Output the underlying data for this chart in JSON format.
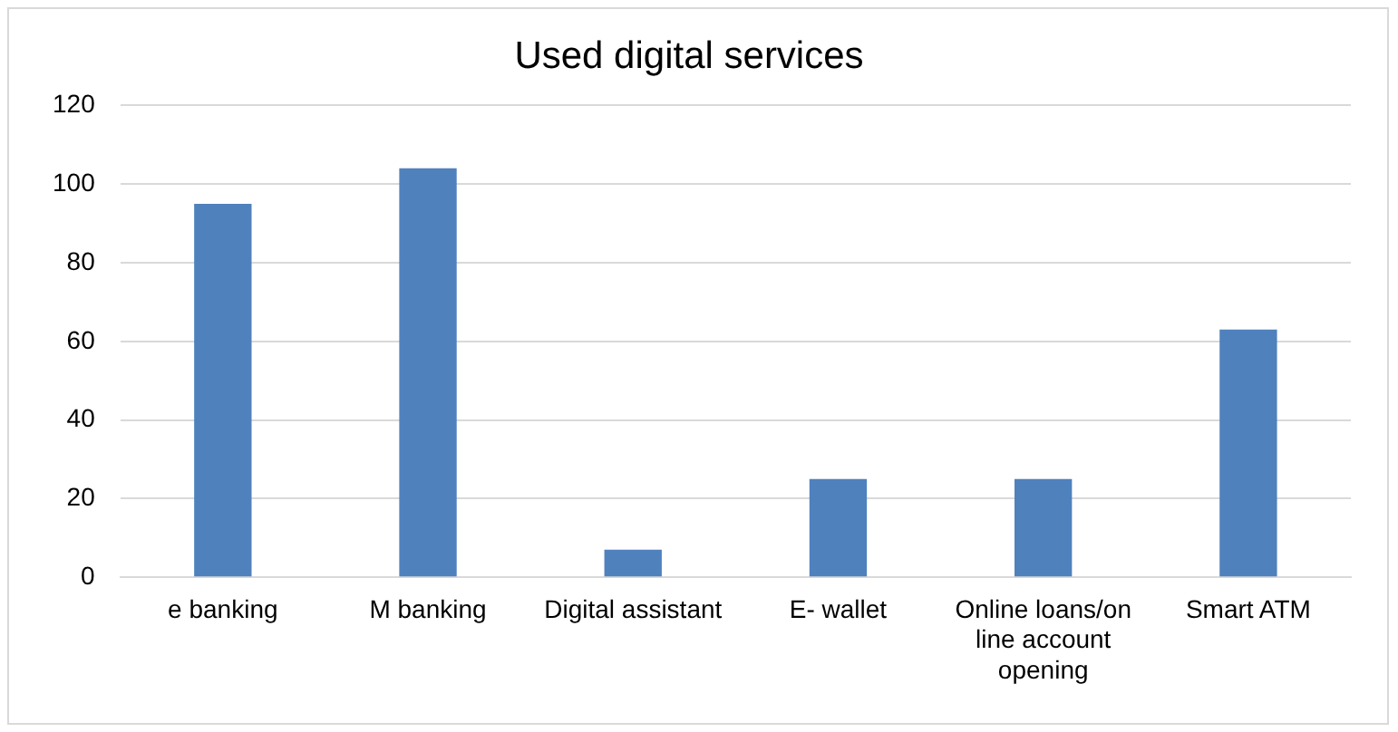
{
  "chart_data": {
    "type": "bar",
    "title": "Used digital services",
    "categories": [
      "e banking",
      "M banking",
      "Digital assistant",
      "E- wallet",
      "Online loans/on line account opening",
      "Smart ATM"
    ],
    "values": [
      95,
      104,
      7,
      25,
      25,
      63
    ],
    "color": "#4f81bd",
    "ylim": [
      0,
      120
    ],
    "yticks": [
      0,
      20,
      40,
      60,
      80,
      100,
      120
    ],
    "grid": "y",
    "legend": false
  }
}
